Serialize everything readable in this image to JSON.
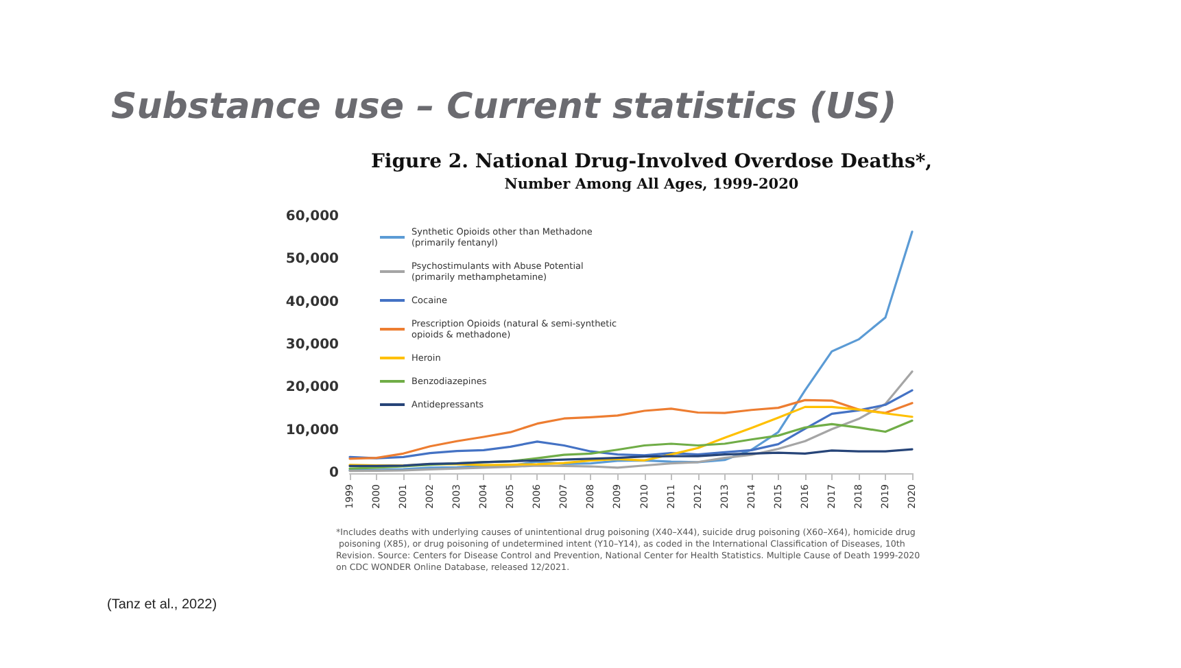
{
  "chart_data": {
    "type": "line",
    "title": "Substance use – Current statistics (US)",
    "subtitle": "Figure 2. National Drug-Involved Overdose Deaths*,\nNumber Among All Ages, 1999-2020",
    "categories": [
      "1999",
      "2000",
      "2001",
      "2002",
      "2003",
      "2004",
      "2005",
      "2006",
      "2007",
      "2008",
      "2009",
      "2010",
      "2011",
      "2012",
      "2013",
      "2014",
      "2015",
      "2016",
      "2017",
      "2018",
      "2019",
      "2020"
    ],
    "series": [
      {
        "name": "Synthetic Opioids other than Methadone\n(primarily fentanyl)",
        "color": "#5b9bd5",
        "values": [
          730,
          780,
          960,
          1300,
          1400,
          1660,
          1740,
          2700,
          2200,
          2300,
          2900,
          3000,
          2700,
          2600,
          3100,
          5500,
          9600,
          19400,
          28500,
          31300,
          36400,
          56500
        ]
      },
      {
        "name": "Psychostimulants with Abuse Potential\n(primarily methamphetamine)",
        "color": "#a5a5a5",
        "values": [
          550,
          580,
          650,
          900,
          1100,
          1300,
          1500,
          1800,
          1700,
          1600,
          1300,
          1800,
          2300,
          2600,
          3600,
          4300,
          5700,
          7500,
          10300,
          12700,
          16200,
          23800
        ]
      },
      {
        "name": "Cocaine",
        "color": "#4472c4",
        "values": [
          3800,
          3500,
          3800,
          4700,
          5200,
          5400,
          6200,
          7400,
          6500,
          5100,
          4400,
          4200,
          4700,
          4400,
          4900,
          5400,
          6800,
          10400,
          13900,
          14700,
          16000,
          19400
        ]
      },
      {
        "name": "Prescription Opioids (natural & semi-synthetic\nopioids & methadone)",
        "color": "#ed7d31",
        "values": [
          3400,
          3600,
          4600,
          6300,
          7500,
          8500,
          9600,
          11600,
          12800,
          13100,
          13500,
          14600,
          15100,
          14200,
          14100,
          14800,
          15300,
          17100,
          17000,
          14900,
          14100,
          16400
        ]
      },
      {
        "name": "Heroin",
        "color": "#ffc000",
        "values": [
          1960,
          1840,
          1780,
          2100,
          2100,
          1900,
          2000,
          2100,
          2400,
          3000,
          3300,
          3000,
          4400,
          5900,
          8300,
          10600,
          13000,
          15500,
          15500,
          14900,
          14000,
          13200
        ]
      },
      {
        "name": "Benzodiazepines",
        "color": "#70ad47",
        "values": [
          1100,
          1300,
          1600,
          2000,
          2300,
          2600,
          2800,
          3500,
          4300,
          4600,
          5500,
          6500,
          6900,
          6500,
          6900,
          7900,
          8800,
          10700,
          11500,
          10700,
          9700,
          12300
        ]
      },
      {
        "name": "Antidepressants",
        "color": "#264478",
        "values": [
          1700,
          1700,
          1800,
          2200,
          2300,
          2600,
          2800,
          3000,
          3200,
          3400,
          3600,
          3900,
          4000,
          4000,
          4400,
          4600,
          4800,
          4600,
          5300,
          5100,
          5100,
          5600
        ]
      }
    ],
    "ylim": [
      0,
      60000
    ],
    "yticks": [
      {
        "value": 0,
        "label": "0"
      },
      {
        "value": 10000,
        "label": "10,000"
      },
      {
        "value": 20000,
        "label": "20,000"
      },
      {
        "value": 30000,
        "label": "30,000"
      },
      {
        "value": 40000,
        "label": "40,000"
      },
      {
        "value": 50000,
        "label": "50,000"
      },
      {
        "value": 60000,
        "label": "60,000"
      }
    ],
    "legend": "top left",
    "marker": "none",
    "line_style": "solid",
    "annotations": [
      "*Includes deaths with underlying causes of unintentional drug poisoning (X40–X44), suicide drug poisoning (X60–X64), homicide drug poisoning (X85), or drug poisoning of undetermined intent (Y10–Y14), as coded in the International Classification of Diseases, 10th Revision. Source: Centers for Disease Control and Prevention, National Center for Health Statistics. Multiple Cause of Death 1999-2020 on CDC WONDER Online Database, released 12/2021.",
      "(Tanz et al., 2022)"
    ]
  }
}
